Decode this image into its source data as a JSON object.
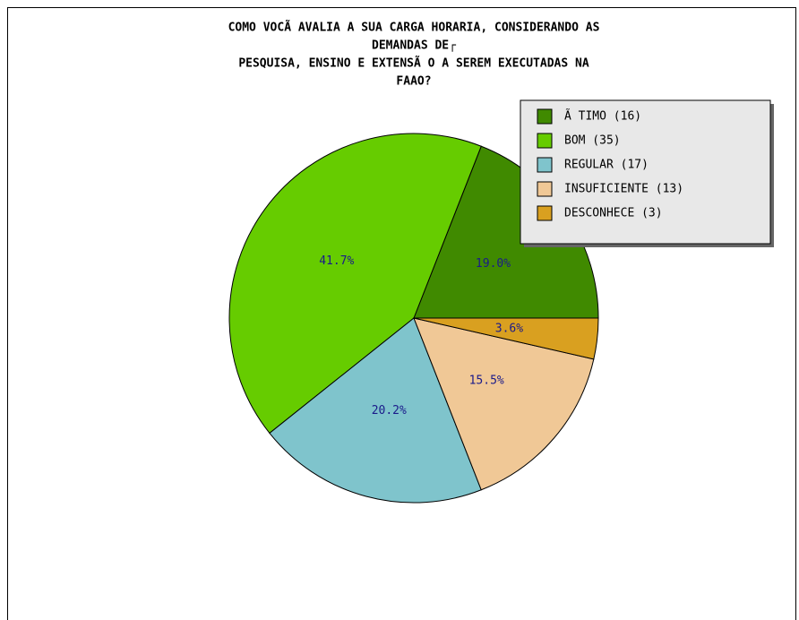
{
  "chart_data": {
    "type": "pie",
    "title": [
      "COMO VOCÃ  AVALIA A SUA CARGA HORARIA, CONSIDERANDO AS",
      "DEMANDAS DE┌",
      "PESQUISA, ENSINO E EXTENSÃ O A SEREM EXECUTADAS NA",
      "FAAO?"
    ],
    "categories": [
      "Ã TIMO (16)",
      "BOM (35)",
      "REGULAR (17)",
      "INSUFICIENTE (13)",
      "DESCONHECE (3)"
    ],
    "values": [
      16,
      35,
      17,
      13,
      3
    ],
    "value_labels": [
      "19.0%",
      "41.7%",
      "20.2%",
      "15.5%",
      "3.6%"
    ],
    "colors": [
      "#408a00",
      "#66cc00",
      "#7fc4cc",
      "#f0c896",
      "#d9a020"
    ],
    "legend": "upper right"
  }
}
